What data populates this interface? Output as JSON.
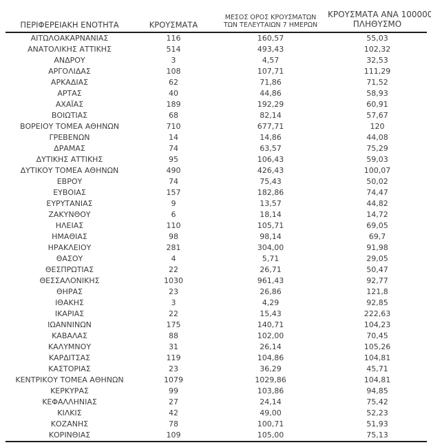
{
  "chart_data": {
    "type": "table",
    "columns": [
      {
        "label": "ΠΕΡΙΦΕΡΕΙΑΚΗ ΕΝΟΤΗΤΑ"
      },
      {
        "label": "ΚΡΟΥΣΜΑΤΑ"
      },
      {
        "label_line1": "ΜΕΣΟΣ ΟΡΟΣ ΚΡΟΥΣΜΑΤΩΝ",
        "label_line2": "ΤΩΝ ΤΕΛΕΥΤΑΙΩΝ 7 ΗΜΕΡΩΝ"
      },
      {
        "label_line1": "ΚΡΟΥΣΜΑΤΑ ΑΝΑ 100000",
        "label_line2": "ΠΛΗΘΥΣΜΟ"
      }
    ],
    "rows": [
      {
        "region": "ΑΙΤΩΛΟΑΚΑΡΝΑΝΙΑΣ",
        "cases": "116",
        "avg_7day": "160,57",
        "per_100k": "55,03"
      },
      {
        "region": "ΑΝΑΤΟΛΙΚΗΣ ΑΤΤΙΚΗΣ",
        "cases": "514",
        "avg_7day": "493,43",
        "per_100k": "102,32"
      },
      {
        "region": "ΑΝΔΡΟΥ",
        "cases": "3",
        "avg_7day": "4,57",
        "per_100k": "32,53"
      },
      {
        "region": "ΑΡΓΟΛΙΔΑΣ",
        "cases": "108",
        "avg_7day": "107,71",
        "per_100k": "111,29"
      },
      {
        "region": "ΑΡΚΑΔΙΑΣ",
        "cases": "62",
        "avg_7day": "71,86",
        "per_100k": "71,52"
      },
      {
        "region": "ΑΡΤΑΣ",
        "cases": "40",
        "avg_7day": "44,86",
        "per_100k": "58,93"
      },
      {
        "region": "ΑΧΑΪΑΣ",
        "cases": "189",
        "avg_7day": "192,29",
        "per_100k": "60,91"
      },
      {
        "region": "ΒΟΙΩΤΙΑΣ",
        "cases": "68",
        "avg_7day": "82,14",
        "per_100k": "57,67"
      },
      {
        "region": "ΒΟΡΕΙΟΥ ΤΟΜΕΑ ΑΘΗΝΩΝ",
        "cases": "710",
        "avg_7day": "677,71",
        "per_100k": "120"
      },
      {
        "region": "ΓΡΕΒΕΝΩΝ",
        "cases": "14",
        "avg_7day": "14,86",
        "per_100k": "44,08"
      },
      {
        "region": "ΔΡΑΜΑΣ",
        "cases": "74",
        "avg_7day": "63,57",
        "per_100k": "75,29"
      },
      {
        "region": "ΔΥΤΙΚΗΣ ΑΤΤΙΚΗΣ",
        "cases": "95",
        "avg_7day": "106,43",
        "per_100k": "59,03"
      },
      {
        "region": "ΔΥΤΙΚΟΥ ΤΟΜΕΑ ΑΘΗΝΩΝ",
        "cases": "490",
        "avg_7day": "426,43",
        "per_100k": "100,07"
      },
      {
        "region": "ΕΒΡΟΥ",
        "cases": "74",
        "avg_7day": "75,43",
        "per_100k": "50,02"
      },
      {
        "region": "ΕΥΒΟΙΑΣ",
        "cases": "157",
        "avg_7day": "182,86",
        "per_100k": "74,47"
      },
      {
        "region": "ΕΥΡΥΤΑΝΙΑΣ",
        "cases": "9",
        "avg_7day": "13,57",
        "per_100k": "44,82"
      },
      {
        "region": "ΖΑΚΥΝΘΟΥ",
        "cases": "6",
        "avg_7day": "18,14",
        "per_100k": "14,72"
      },
      {
        "region": "ΗΛΕΙΑΣ",
        "cases": "110",
        "avg_7day": "105,71",
        "per_100k": "69,05"
      },
      {
        "region": "ΗΜΑΘΙΑΣ",
        "cases": "98",
        "avg_7day": "98,14",
        "per_100k": "69,7"
      },
      {
        "region": "ΗΡΑΚΛΕΙΟΥ",
        "cases": "281",
        "avg_7day": "304,00",
        "per_100k": "91,98"
      },
      {
        "region": "ΘΑΣΟΥ",
        "cases": "4",
        "avg_7day": "5,71",
        "per_100k": "29,05"
      },
      {
        "region": "ΘΕΣΠΡΩΤΙΑΣ",
        "cases": "22",
        "avg_7day": "26,71",
        "per_100k": "50,47"
      },
      {
        "region": "ΘΕΣΣΑΛΟΝΙΚΗΣ",
        "cases": "1030",
        "avg_7day": "961,43",
        "per_100k": "92,77"
      },
      {
        "region": "ΘΗΡΑΣ",
        "cases": "23",
        "avg_7day": "26,86",
        "per_100k": "121,8"
      },
      {
        "region": "ΙΘΑΚΗΣ",
        "cases": "3",
        "avg_7day": "4,29",
        "per_100k": "92,85"
      },
      {
        "region": "ΙΚΑΡΙΑΣ",
        "cases": "22",
        "avg_7day": "15,43",
        "per_100k": "222,63"
      },
      {
        "region": "ΙΩΑΝΝΙΝΩΝ",
        "cases": "175",
        "avg_7day": "140,71",
        "per_100k": "104,23"
      },
      {
        "region": "ΚΑΒΑΛΑΣ",
        "cases": "88",
        "avg_7day": "102,00",
        "per_100k": "70,45"
      },
      {
        "region": "ΚΑΛΥΜΝΟΥ",
        "cases": "31",
        "avg_7day": "26,14",
        "per_100k": "105,26"
      },
      {
        "region": "ΚΑΡΔΙΤΣΑΣ",
        "cases": "119",
        "avg_7day": "104,86",
        "per_100k": "104,81"
      },
      {
        "region": "ΚΑΣΤΟΡΙΑΣ",
        "cases": "23",
        "avg_7day": "36,29",
        "per_100k": "45,71"
      },
      {
        "region": "ΚΕΝΤΡΙΚΟΥ ΤΟΜΕΑ ΑΘΗΝΩΝ",
        "cases": "1079",
        "avg_7day": "1029,86",
        "per_100k": "104,81"
      },
      {
        "region": "ΚΕΡΚΥΡΑΣ",
        "cases": "99",
        "avg_7day": "103,86",
        "per_100k": "94,85"
      },
      {
        "region": "ΚΕΦΑΛΛΗΝΙΑΣ",
        "cases": "27",
        "avg_7day": "24,14",
        "per_100k": "75,42"
      },
      {
        "region": "ΚΙΛΚΙΣ",
        "cases": "42",
        "avg_7day": "49,00",
        "per_100k": "52,23"
      },
      {
        "region": "ΚΟΖΑΝΗΣ",
        "cases": "78",
        "avg_7day": "100,71",
        "per_100k": "51,93"
      },
      {
        "region": "ΚΟΡΙΝΘΙΑΣ",
        "cases": "109",
        "avg_7day": "105,00",
        "per_100k": "75,13"
      }
    ]
  },
  "colors": {
    "text": "#3c3c3c",
    "border": "#1c1c1c",
    "background": "#ffffff"
  }
}
